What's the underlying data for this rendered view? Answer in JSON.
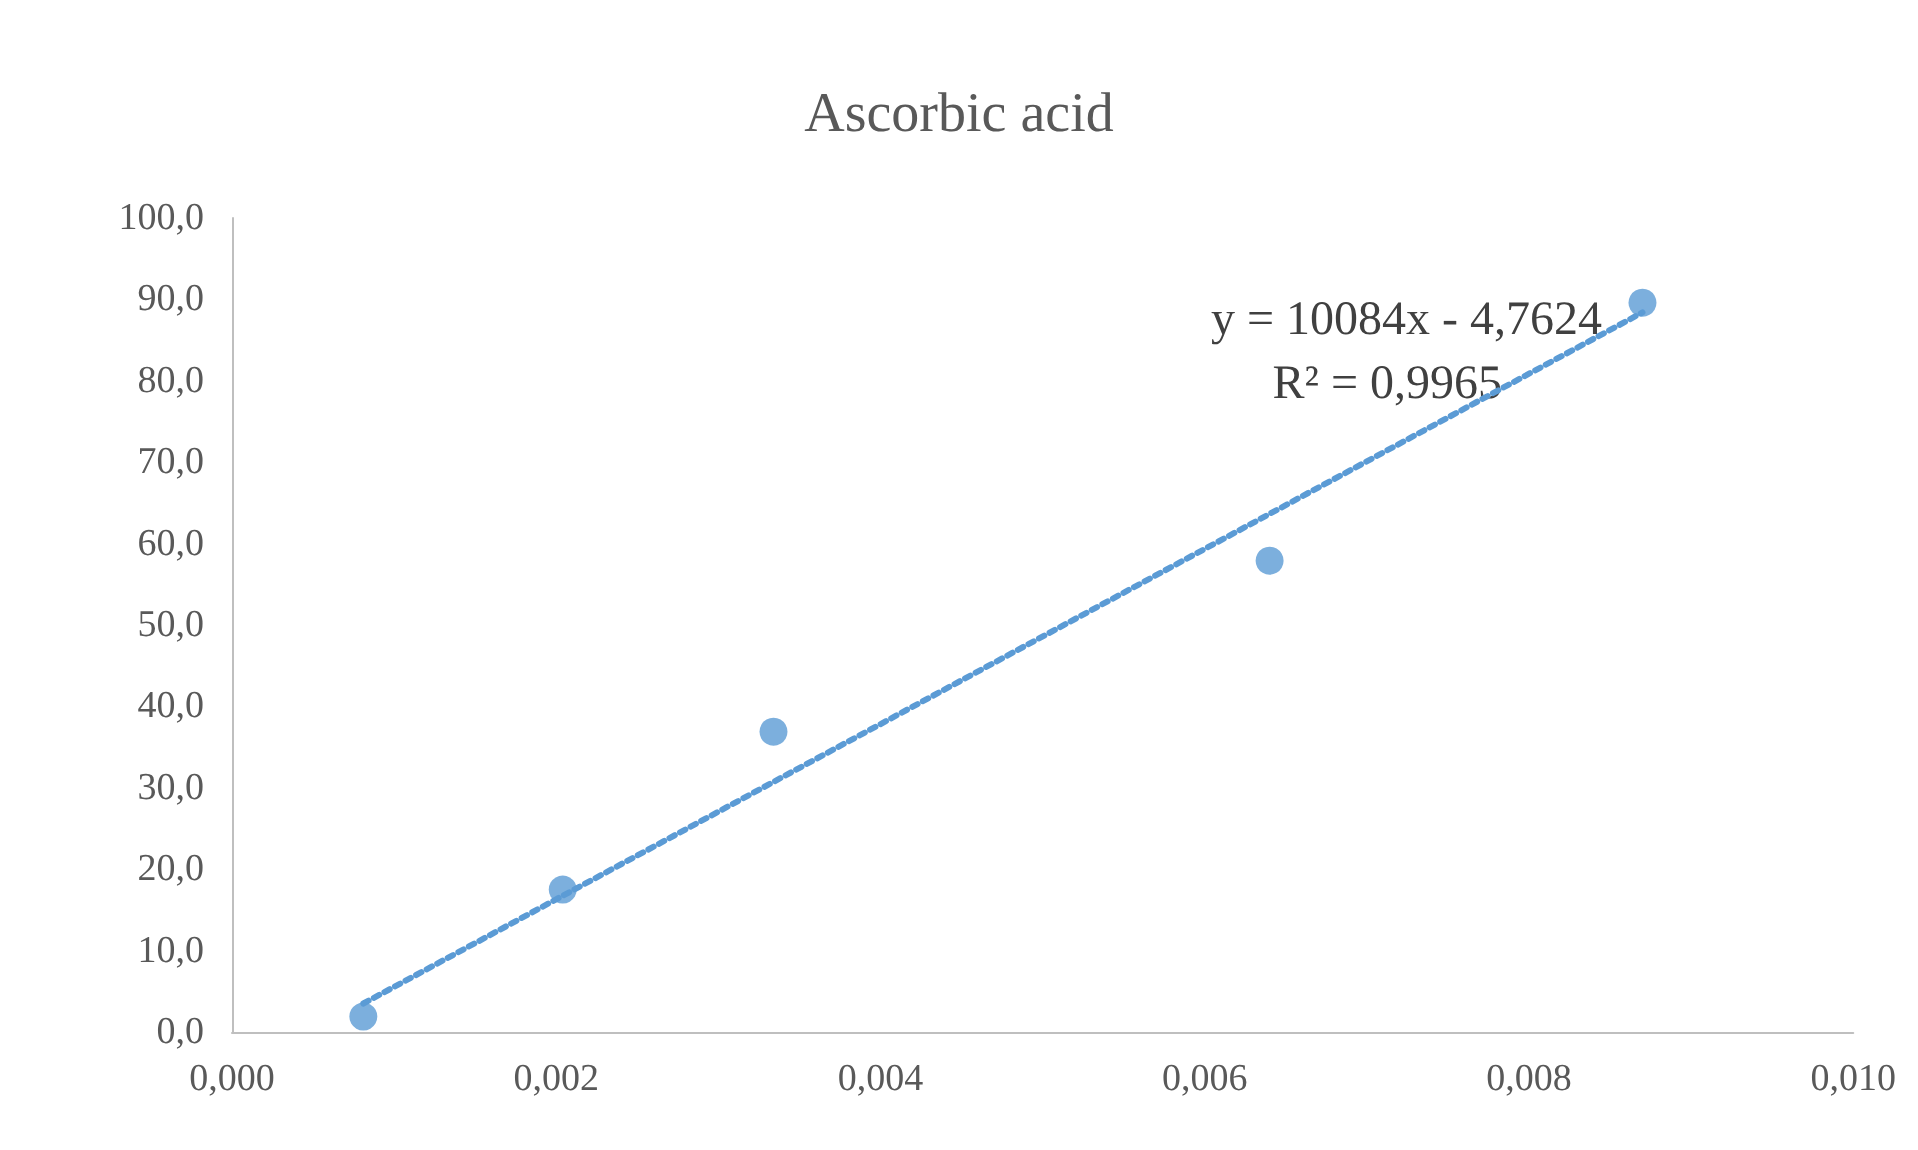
{
  "chart_data": {
    "type": "scatter",
    "title": "Ascorbic acid",
    "series": [
      {
        "color": "#5b9bd5",
        "marker": "circle",
        "x": [
          0.00081,
          0.00204,
          0.00334,
          0.0064,
          0.0087
        ],
        "values": [
          1.9,
          17.5,
          36.9,
          57.9,
          89.6
        ]
      },
      {
        "type": "line",
        "color": "#5b9bd5",
        "marker": "none",
        "line_style": "dotted",
        "x": [
          0.00081,
          0.0087
        ],
        "values": [
          3.5,
          88.4
        ]
      }
    ],
    "annotations": [
      "y = 10084x - 4,7624",
      "R² = 0,9965"
    ],
    "xlim": [
      0,
      0.01
    ],
    "xticks": [
      {
        "value": 0,
        "label": "0,000"
      },
      {
        "value": 0.002,
        "label": "0,002"
      },
      {
        "value": 0.004,
        "label": "0,004"
      },
      {
        "value": 0.006,
        "label": "0,006"
      },
      {
        "value": 0.008,
        "label": "0,008"
      },
      {
        "value": 0.01,
        "label": "0,010"
      }
    ],
    "ylim": [
      0,
      100
    ],
    "yticks": [
      {
        "value": 0,
        "label": "0,0"
      },
      {
        "value": 10,
        "label": "10,0"
      },
      {
        "value": 20,
        "label": "20,0"
      },
      {
        "value": 30,
        "label": "30,0"
      },
      {
        "value": 40,
        "label": "40,0"
      },
      {
        "value": 50,
        "label": "50,0"
      },
      {
        "value": 60,
        "label": "60,0"
      },
      {
        "value": 70,
        "label": "70,0"
      },
      {
        "value": 80,
        "label": "80,0"
      },
      {
        "value": 90,
        "label": "90,0"
      },
      {
        "value": 100,
        "label": "100,0"
      }
    ],
    "grid": false
  }
}
